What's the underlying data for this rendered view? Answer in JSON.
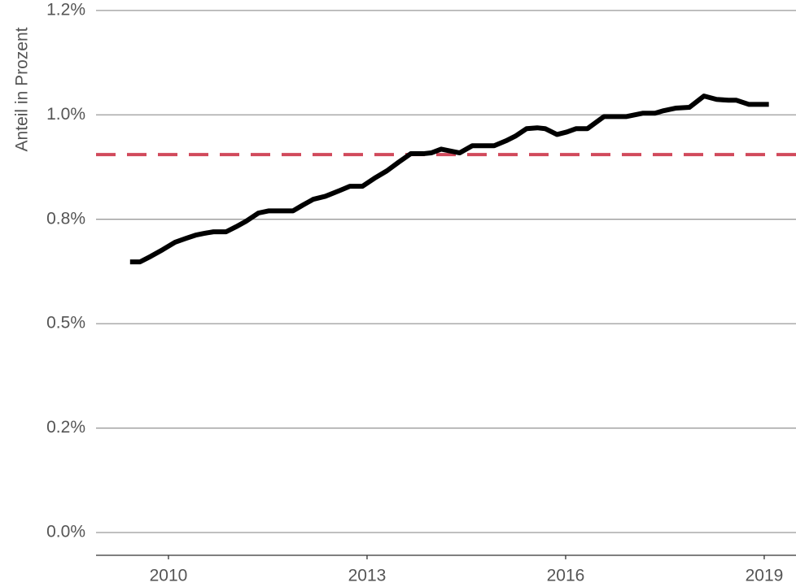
{
  "chart_data": {
    "type": "line",
    "ylabel": "Anteil in Prozent",
    "x": [
      2009.42,
      2009.57,
      2009.73,
      2009.91,
      2010.1,
      2010.26,
      2010.41,
      2010.53,
      2010.68,
      2010.87,
      2011.02,
      2011.17,
      2011.36,
      2011.51,
      2011.7,
      2011.88,
      2012.03,
      2012.19,
      2012.37,
      2012.59,
      2012.74,
      2012.93,
      2013.11,
      2013.3,
      2013.48,
      2013.66,
      2013.85,
      2013.97,
      2014.12,
      2014.24,
      2014.4,
      2014.59,
      2014.77,
      2014.92,
      2015.1,
      2015.24,
      2015.41,
      2015.57,
      2015.69,
      2015.87,
      2016.02,
      2016.16,
      2016.33,
      2016.58,
      2016.76,
      2016.92,
      2017.17,
      2017.35,
      2017.48,
      2017.66,
      2017.87,
      2018.09,
      2018.28,
      2018.46,
      2018.58,
      2018.77,
      2019.07
    ],
    "series": [
      {
        "color": "#000000",
        "values": [
          0.648,
          0.648,
          0.661,
          0.677,
          0.695,
          0.704,
          0.712,
          0.716,
          0.72,
          0.72,
          0.732,
          0.745,
          0.765,
          0.77,
          0.77,
          0.77,
          0.784,
          0.798,
          0.805,
          0.819,
          0.829,
          0.829,
          0.848,
          0.866,
          0.887,
          0.907,
          0.907,
          0.909,
          0.918,
          0.914,
          0.909,
          0.926,
          0.926,
          0.926,
          0.938,
          0.949,
          0.967,
          0.969,
          0.967,
          0.953,
          0.959,
          0.967,
          0.967,
          0.996,
          0.996,
          0.996,
          1.004,
          1.004,
          1.01,
          1.016,
          1.018,
          1.045,
          1.037,
          1.035,
          1.035,
          1.025,
          1.025
        ]
      }
    ],
    "hline": {
      "value": 0.905,
      "color": "#d1495b"
    },
    "xlim": [
      2008.906,
      2019.48
    ],
    "xticks": [
      2010,
      2013,
      2016,
      2019
    ],
    "ylim": [
      -0.0545,
      1.275
    ],
    "yticks": [
      {
        "value": 0,
        "label": "0.0%"
      },
      {
        "value": 0.25,
        "label": "0.2%"
      },
      {
        "value": 0.5,
        "label": "0.5%"
      },
      {
        "value": 0.75,
        "label": "0.8%"
      },
      {
        "value": 1.0,
        "label": "1.0%"
      },
      {
        "value": 1.25,
        "label": "1.2%"
      }
    ],
    "grid": true
  }
}
